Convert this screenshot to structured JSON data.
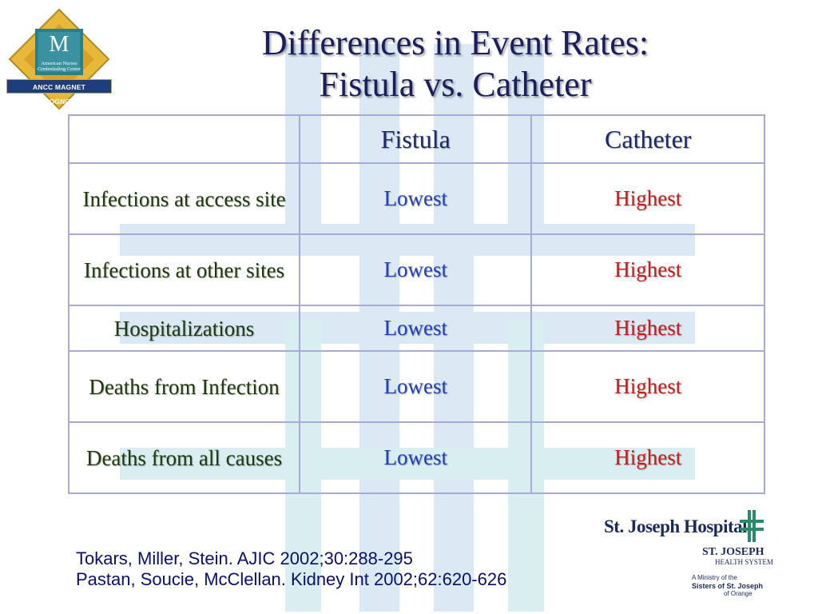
{
  "slide": {
    "title_line1": "Differences in Event Rates:",
    "title_line2": "Fistula vs. Catheter"
  },
  "magnet_logo": {
    "letter": "M",
    "subtitle": "American Nurses Credentialing Center",
    "band_text": "ANCC MAGNET RECOGNITION"
  },
  "table": {
    "columns": [
      "",
      "Fistula",
      "Catheter"
    ],
    "rows": [
      {
        "label": "Infections at access site",
        "fistula": "Lowest",
        "catheter": "Highest"
      },
      {
        "label": "Infections at other sites",
        "fistula": "Lowest",
        "catheter": "Highest"
      },
      {
        "label": "Hospitalizations",
        "fistula": "Lowest",
        "catheter": "Highest"
      },
      {
        "label": "Deaths from Infection",
        "fistula": "Lowest",
        "catheter": "Highest"
      },
      {
        "label": "Deaths from all causes",
        "fistula": "Lowest",
        "catheter": "Highest"
      }
    ]
  },
  "citations": [
    "Tokars, Miller, Stein. AJIC 2002;30:288-295",
    "Pastan, Soucie, McClellan. Kidney Int 2002;62:620-626"
  ],
  "hospital_logo": {
    "name": "St. Joseph Hospital",
    "system_line1": "ST. JOSEPH",
    "system_line2": "HEALTH SYSTEM",
    "ministry_line1": "A Ministry of the",
    "ministry_line2": "Sisters of St. Joseph",
    "ministry_line3": "of Orange"
  },
  "colors": {
    "title": "#1a1f5c",
    "low": "#1f3fbf",
    "high": "#cc1a1a",
    "table_border": "#a9a9d9",
    "background_art": "#dceef6"
  }
}
